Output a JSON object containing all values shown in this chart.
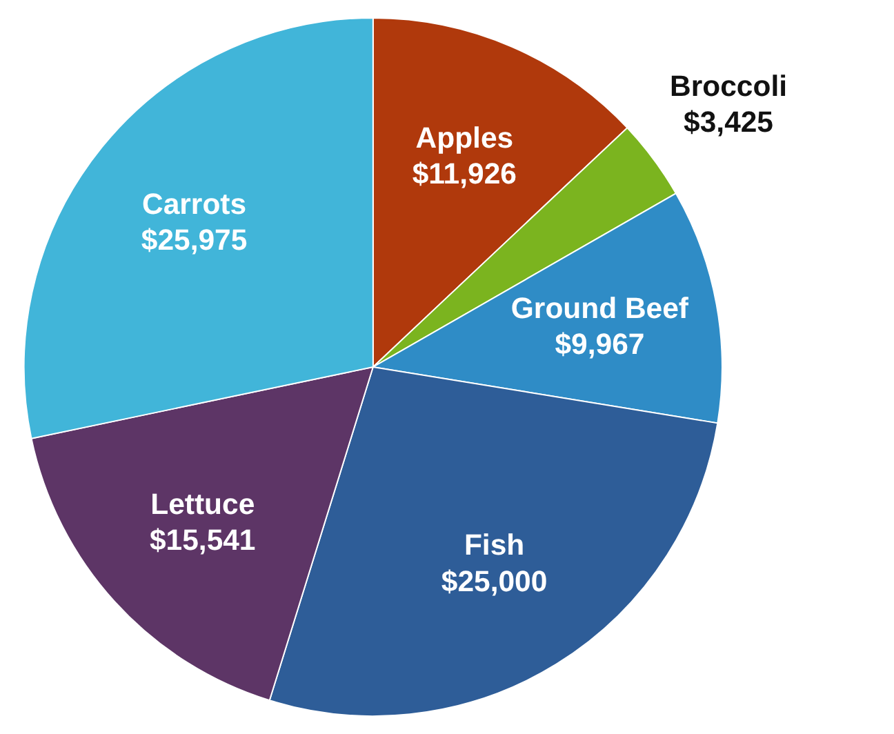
{
  "chart_data": {
    "type": "pie",
    "categories": [
      "Apples",
      "Broccoli",
      "Ground Beef",
      "Fish",
      "Lettuce",
      "Carrots"
    ],
    "values": [
      11926,
      3425,
      9967,
      25000,
      15541,
      25975
    ],
    "colors": [
      "#b0390c",
      "#7bb41f",
      "#2f8cc6",
      "#2e5d98",
      "#5d3566",
      "#41b5d9"
    ],
    "value_labels": [
      "$11,926",
      "$3,425",
      "$9,967",
      "$25,000",
      "$15,541",
      "$25,975"
    ],
    "legend": false
  }
}
